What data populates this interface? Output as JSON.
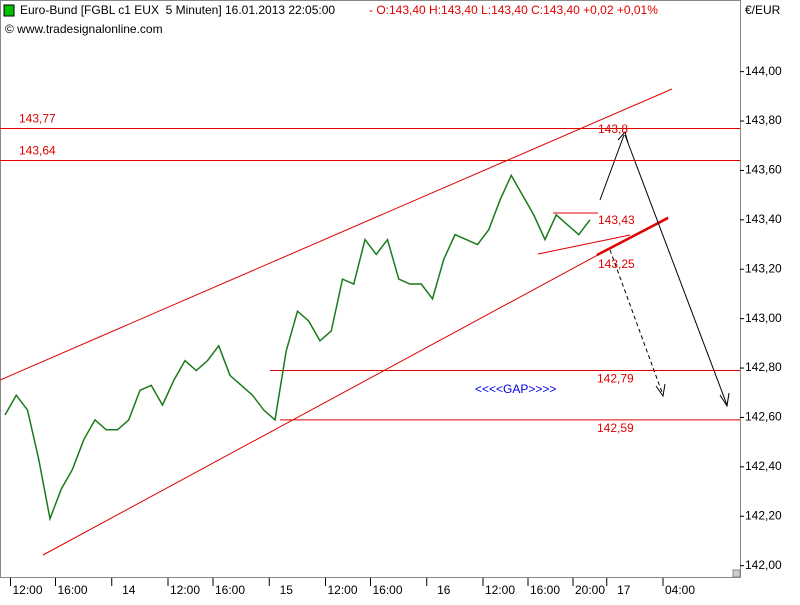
{
  "chart_data": {
    "type": "line",
    "title": "Euro-Bund [FGBL c1 EUX  5 Minuten] 16.01.2013 22:05:00",
    "subtitle": "- O:143,40 H:143,40 L:143,40 C:143,40 +0,02 +0,01%",
    "source": "© www.tradesignalonline.com",
    "y_axis_label": "€/EUR",
    "categories": [
      null,
      null,
      "12:00",
      null,
      null,
      null,
      "16:00",
      null,
      null,
      null,
      null,
      "14",
      null,
      null,
      null,
      null,
      "12:00",
      null,
      null,
      null,
      "16:00",
      null,
      null,
      null,
      null,
      "15",
      null,
      null,
      null,
      null,
      "12:00",
      null,
      null,
      null,
      "16:00",
      null,
      null,
      null,
      null,
      "16",
      null,
      null,
      null,
      null,
      "12:00",
      null,
      null,
      null,
      "16:00",
      null,
      null,
      null,
      "20:00",
      null,
      null,
      "17",
      null,
      null,
      null,
      null,
      "04:00",
      null,
      null,
      null,
      null
    ],
    "series": [
      {
        "name": "Euro-Bund",
        "color": "#1a7a1a",
        "values": [
          142.61,
          142.69,
          142.63,
          142.43,
          142.19,
          142.31,
          142.39,
          142.51,
          142.59,
          142.55,
          142.55,
          142.59,
          142.71,
          142.73,
          142.65,
          142.75,
          142.83,
          142.79,
          142.83,
          142.89,
          142.77,
          142.73,
          142.69,
          142.63,
          142.59,
          142.87,
          143.03,
          142.99,
          142.91,
          142.95,
          143.16,
          143.14,
          143.32,
          143.26,
          143.32,
          143.16,
          143.14,
          143.14,
          143.08,
          143.24,
          143.34,
          143.32,
          143.3,
          143.36,
          143.48,
          143.58,
          143.5,
          143.42,
          143.32,
          143.42,
          143.38,
          143.34,
          143.4,
          null,
          null,
          null,
          null,
          null,
          null,
          null,
          null,
          null,
          null,
          null,
          null
        ]
      }
    ],
    "ylim": [
      141.95,
      144.29
    ],
    "yticks": [
      {
        "value": 142.0,
        "label": "142,00"
      },
      {
        "value": 142.2,
        "label": "142,20"
      },
      {
        "value": 142.4,
        "label": "142,40"
      },
      {
        "value": 142.6,
        "label": "142,60"
      },
      {
        "value": 142.8,
        "label": "142,80"
      },
      {
        "value": 143.0,
        "label": "143,00"
      },
      {
        "value": 143.2,
        "label": "143,20"
      },
      {
        "value": 143.4,
        "label": "143,40"
      },
      {
        "value": 143.6,
        "label": "143,60"
      },
      {
        "value": 143.8,
        "label": "143,80"
      },
      {
        "value": 144.0,
        "label": "144,00"
      }
    ],
    "grid": false,
    "levels": [
      {
        "value": 143.77,
        "label": "143,77"
      },
      {
        "value": 143.64,
        "label": "143,64"
      },
      {
        "value": 142.79,
        "label": "142,79"
      },
      {
        "value": 142.59,
        "label": "142,59"
      }
    ],
    "level_color": "#e00000",
    "annotations": [
      "143,8",
      "143,43",
      "143,25",
      "<<<<GAP>>>>"
    ]
  }
}
